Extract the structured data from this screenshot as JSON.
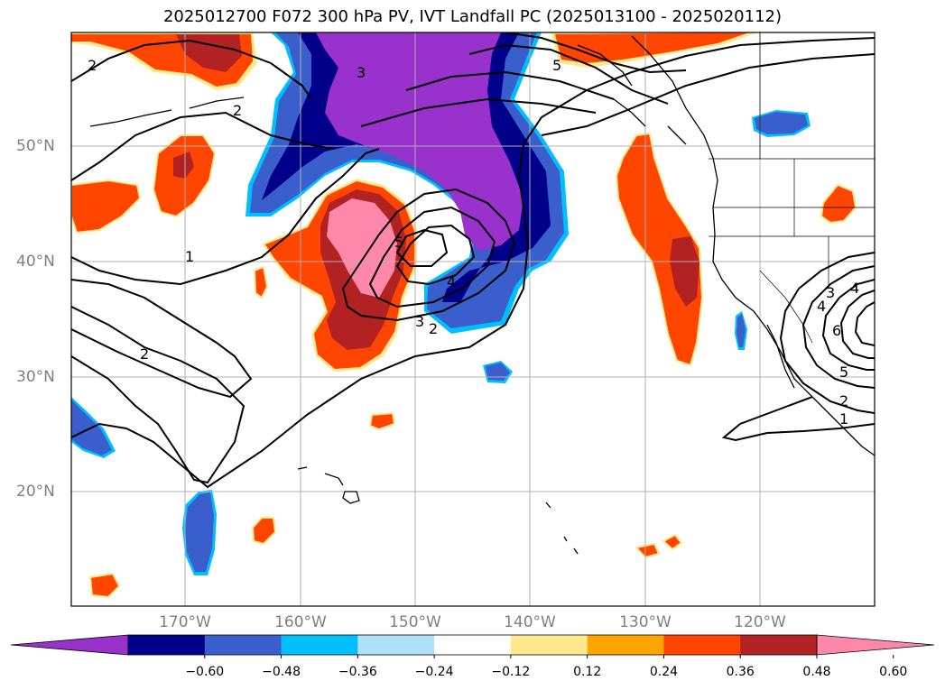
{
  "title": "2025012700 F072 300 hPa PV, IVT Landfall PC (2025013100 - 2025020112)",
  "lat_labels": [
    "50°N",
    "40°N",
    "30°N",
    "20°N"
  ],
  "lon_labels": [
    "170°W",
    "160°W",
    "150°W",
    "140°W",
    "130°W",
    "120°W"
  ],
  "colorbar": {
    "ticks": [
      "−0.60",
      "−0.48",
      "−0.36",
      "−0.24",
      "−0.12",
      "0.12",
      "0.24",
      "0.36",
      "0.48",
      "0.60"
    ],
    "colors": [
      "#9932cc",
      "#00008b",
      "#3a5fcd",
      "#00bfff",
      "#afe1fa",
      "#ffffff",
      "#ffe98c",
      "#ffa500",
      "#ff4500",
      "#b22222",
      "#ff88aa"
    ],
    "extend": "both"
  },
  "contour_labels": [
    "2",
    "2",
    "1",
    "2",
    "3",
    "5",
    "4",
    "3",
    "2",
    "5",
    "3",
    "4",
    "4",
    "6",
    "5",
    "2",
    "1"
  ],
  "map_colors": {
    "land_outline": "#000000",
    "grid": "#b0b0b0"
  }
}
